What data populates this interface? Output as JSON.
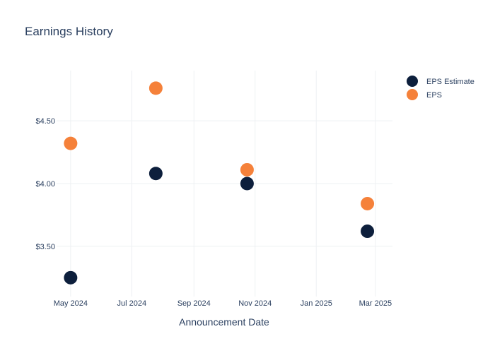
{
  "chart_data": {
    "type": "scatter",
    "title": "Earnings History",
    "xlabel": "Announcement Date",
    "ylabel": "",
    "x_ticks": [
      "May 2024",
      "Jul 2024",
      "Sep 2024",
      "Nov 2024",
      "Jan 2025",
      "Mar 2025"
    ],
    "y_ticks": [
      "$3.50",
      "$4.00",
      "$4.50"
    ],
    "y_tick_values": [
      3.5,
      4.0,
      4.5
    ],
    "ylim": [
      3.1,
      4.9
    ],
    "xlim": [
      "2024-04-17",
      "2025-03-18"
    ],
    "grid": true,
    "legend_position": "top-right",
    "series": [
      {
        "name": "EPS Estimate",
        "color": "#0d1f3c",
        "x": [
          "2024-05-01",
          "2024-07-25",
          "2024-10-24",
          "2025-02-21"
        ],
        "values": [
          3.25,
          4.08,
          4.0,
          3.62
        ]
      },
      {
        "name": "EPS",
        "color": "#f5813a",
        "x": [
          "2024-05-01",
          "2024-07-25",
          "2024-10-24",
          "2025-02-21"
        ],
        "values": [
          4.32,
          4.76,
          4.11,
          3.84
        ]
      }
    ]
  }
}
